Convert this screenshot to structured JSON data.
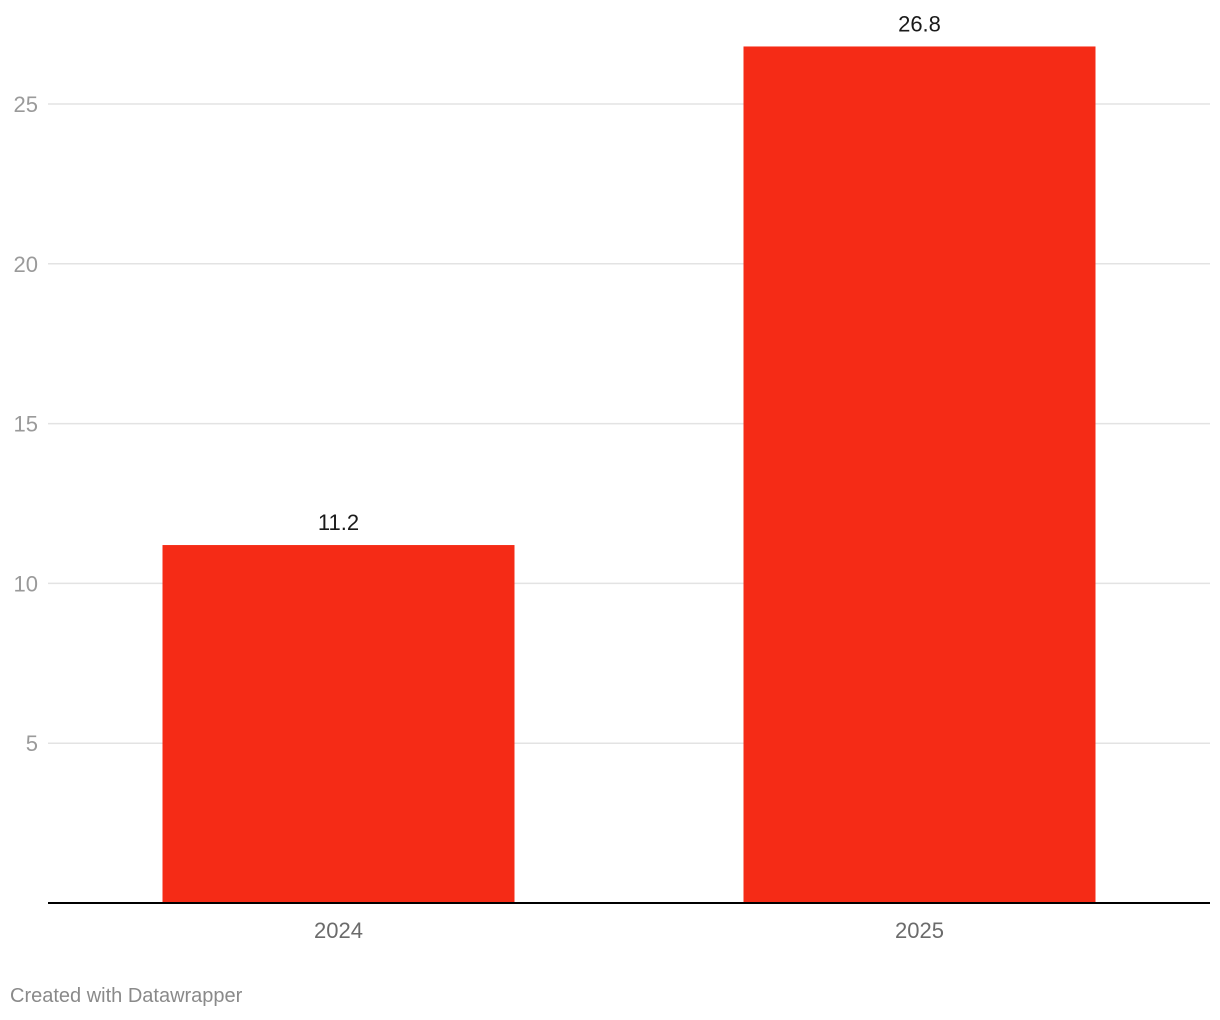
{
  "chart_data": {
    "type": "bar",
    "categories": [
      "2024",
      "2025"
    ],
    "values": [
      11.2,
      26.8
    ],
    "value_labels": [
      "11.2",
      "26.8"
    ],
    "ylim": [
      0,
      27.5
    ],
    "yticks": [
      5,
      10,
      15,
      20,
      25
    ],
    "grid": true,
    "bar_color": "#f52b16",
    "gridline_color": "#e3e3e3",
    "baseline_color": "#000000"
  },
  "footer": {
    "credit": "Created with Datawrapper"
  }
}
